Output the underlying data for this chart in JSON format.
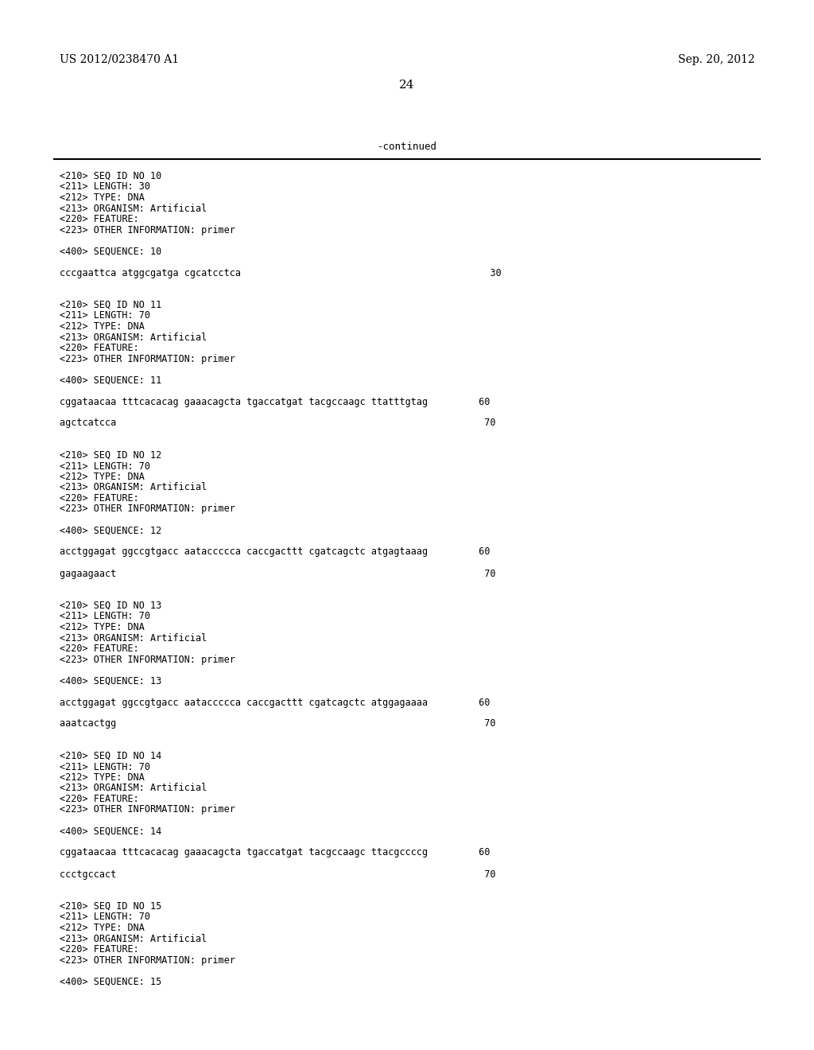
{
  "background_color": "#ffffff",
  "header_left": "US 2012/0238470 A1",
  "header_right": "Sep. 20, 2012",
  "page_number": "24",
  "continued_label": "-continued",
  "font_size_header": 10,
  "font_size_body": 9,
  "content_lines": [
    "<210> SEQ ID NO 10",
    "<211> LENGTH: 30",
    "<212> TYPE: DNA",
    "<213> ORGANISM: Artificial",
    "<220> FEATURE:",
    "<223> OTHER INFORMATION: primer",
    "",
    "<400> SEQUENCE: 10",
    "",
    "cccgaattca atggcgatga cgcatcctca                                            30",
    "",
    "",
    "<210> SEQ ID NO 11",
    "<211> LENGTH: 70",
    "<212> TYPE: DNA",
    "<213> ORGANISM: Artificial",
    "<220> FEATURE:",
    "<223> OTHER INFORMATION: primer",
    "",
    "<400> SEQUENCE: 11",
    "",
    "cggataacaa tttcacacag gaaacagcta tgaccatgat tacgccaagc ttatttgtag         60",
    "",
    "agctcatcca                                                                 70",
    "",
    "",
    "<210> SEQ ID NO 12",
    "<211> LENGTH: 70",
    "<212> TYPE: DNA",
    "<213> ORGANISM: Artificial",
    "<220> FEATURE:",
    "<223> OTHER INFORMATION: primer",
    "",
    "<400> SEQUENCE: 12",
    "",
    "acctggagat ggccgtgacc aataccccca caccgacttt cgatcagctc atgagtaaag         60",
    "",
    "gagaagaact                                                                 70",
    "",
    "",
    "<210> SEQ ID NO 13",
    "<211> LENGTH: 70",
    "<212> TYPE: DNA",
    "<213> ORGANISM: Artificial",
    "<220> FEATURE:",
    "<223> OTHER INFORMATION: primer",
    "",
    "<400> SEQUENCE: 13",
    "",
    "acctggagat ggccgtgacc aataccccca caccgacttt cgatcagctc atggagaaaa         60",
    "",
    "aaatcactgg                                                                 70",
    "",
    "",
    "<210> SEQ ID NO 14",
    "<211> LENGTH: 70",
    "<212> TYPE: DNA",
    "<213> ORGANISM: Artificial",
    "<220> FEATURE:",
    "<223> OTHER INFORMATION: primer",
    "",
    "<400> SEQUENCE: 14",
    "",
    "cggataacaa tttcacacag gaaacagcta tgaccatgat tacgccaagc ttacgccccg         60",
    "",
    "ccctgccact                                                                 70",
    "",
    "",
    "<210> SEQ ID NO 15",
    "<211> LENGTH: 70",
    "<212> TYPE: DNA",
    "<213> ORGANISM: Artificial",
    "<220> FEATURE:",
    "<223> OTHER INFORMATION: primer",
    "",
    "<400> SEQUENCE: 15"
  ]
}
